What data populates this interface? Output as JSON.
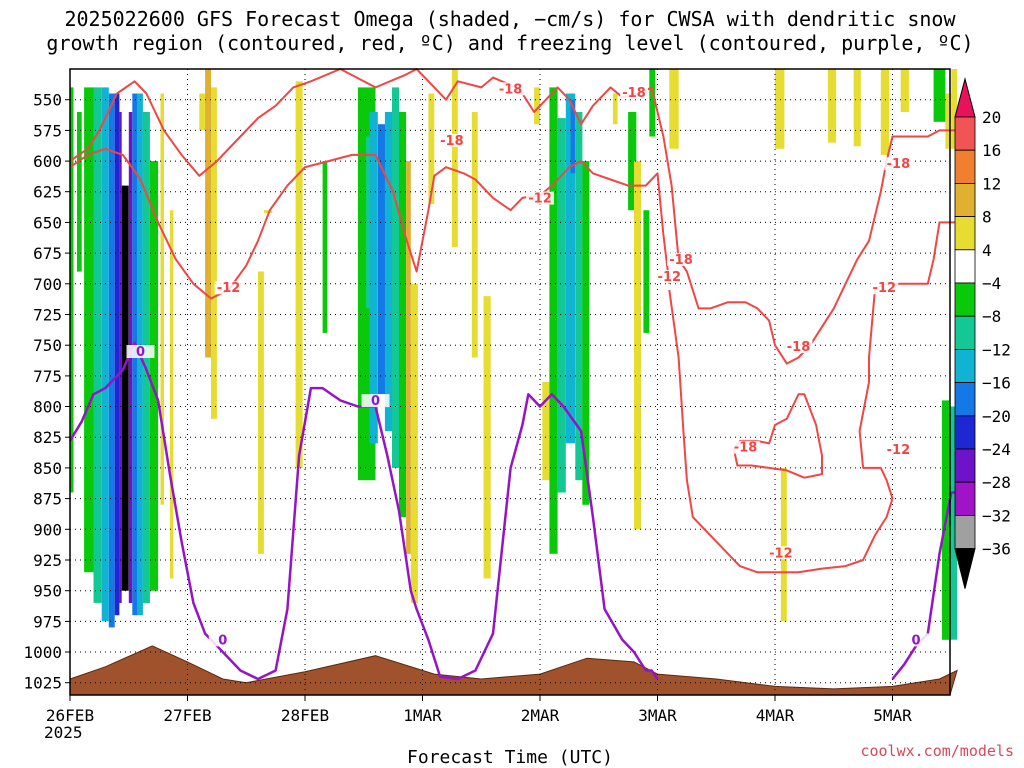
{
  "title_line1": "2025022600 GFS Forecast Omega (shaded, −cm/s) for CWSA with dendritic snow",
  "title_line2": "growth region (contoured, red, ºC) and freezing level (contoured, purple, ºC)",
  "credit": "coolwx.com/models",
  "chart_data": {
    "type": "time-height",
    "title": "2025022600 GFS Forecast Omega (shaded, −cm/s) for CWSA with dendritic snow growth region (contoured, red, ºC) and freezing level (contoured, purple, ºC)",
    "xlabel": "Forecast Time (UTC)",
    "ylabel": "",
    "x_ticks": [
      "26FEB",
      "27FEB",
      "28FEB",
      "1MAR",
      "2MAR",
      "3MAR",
      "4MAR",
      "5MAR"
    ],
    "x_tick_year": "2025",
    "x_range_days": [
      0,
      7.55
    ],
    "y_ticks": [
      550,
      575,
      600,
      625,
      650,
      675,
      700,
      725,
      750,
      775,
      800,
      825,
      850,
      875,
      900,
      925,
      950,
      975,
      1000,
      1025
    ],
    "y_range_hPa": [
      525,
      1035
    ],
    "grid": true,
    "colorbar": {
      "labels": [
        "20",
        "16",
        "12",
        "8",
        "4",
        "−4",
        "−8",
        "−12",
        "−16",
        "−20",
        "−24",
        "−28",
        "−32",
        "−36"
      ],
      "colors": [
        "#e8115c",
        "#f05454",
        "#f08030",
        "#e0b030",
        "#e6dc32",
        "#ffffff",
        "#0ac80a",
        "#14c896",
        "#10b4d2",
        "#1478e6",
        "#1e28d2",
        "#6e14c8",
        "#a014c8",
        "#a0a0a0",
        "#000000"
      ]
    },
    "contour_levels": {
      "dendritic_red": [
        "-12",
        "-18"
      ],
      "freezing_purple": [
        "0"
      ]
    },
    "contour_labels": [
      {
        "text": "-18",
        "color": "#f04646",
        "day": 3.75,
        "hPa": 544
      },
      {
        "text": "-18",
        "color": "#f04646",
        "day": 4.8,
        "hPa": 547
      },
      {
        "text": "-12",
        "color": "#f04646",
        "day": 4.0,
        "hPa": 633
      },
      {
        "text": "-18",
        "color": "#f04646",
        "day": 3.25,
        "hPa": 586
      },
      {
        "text": "-12",
        "color": "#f04646",
        "day": 1.35,
        "hPa": 706
      },
      {
        "text": "-18",
        "color": "#f04646",
        "day": 5.2,
        "hPa": 683
      },
      {
        "text": "-12",
        "color": "#f04646",
        "day": 5.1,
        "hPa": 697
      },
      {
        "text": "-18",
        "color": "#f04646",
        "day": 7.05,
        "hPa": 605
      },
      {
        "text": "-12",
        "color": "#f04646",
        "day": 6.93,
        "hPa": 706
      },
      {
        "text": "-18",
        "color": "#f04646",
        "day": 6.2,
        "hPa": 754
      },
      {
        "text": "-18",
        "color": "#f04646",
        "day": 5.75,
        "hPa": 836
      },
      {
        "text": "-12",
        "color": "#f04646",
        "day": 7.05,
        "hPa": 838
      },
      {
        "text": "-12",
        "color": "#f04646",
        "day": 6.05,
        "hPa": 922
      },
      {
        "text": "0",
        "color": "#9614c8",
        "day": 0.6,
        "hPa": 758
      },
      {
        "text": "0",
        "color": "#9614c8",
        "day": 2.6,
        "hPa": 798
      },
      {
        "text": "0",
        "color": "#9614c8",
        "day": 1.3,
        "hPa": 993
      },
      {
        "text": "0",
        "color": "#9614c8",
        "day": 7.2,
        "hPa": 993
      }
    ],
    "freezing_level_hPa": {
      "days": [
        0.0,
        0.1,
        0.2,
        0.3,
        0.45,
        0.55,
        0.65,
        0.75,
        0.85,
        0.95,
        1.05,
        1.15,
        1.3,
        1.45,
        1.6,
        1.75,
        1.85,
        1.95,
        2.05,
        2.15,
        2.3,
        2.45,
        2.6,
        2.7,
        2.8,
        2.9,
        2.95,
        3.05,
        3.15,
        3.3,
        3.45,
        3.6,
        3.75,
        3.85,
        3.9,
        4.0,
        4.1,
        4.2,
        4.35,
        4.45,
        4.55,
        4.7,
        4.8,
        4.9,
        4.95,
        5.0
      ],
      "hPa": [
        828,
        812,
        790,
        785,
        770,
        748,
        770,
        795,
        855,
        910,
        960,
        985,
        1000,
        1015,
        1022,
        1015,
        965,
        840,
        785,
        785,
        795,
        800,
        800,
        840,
        885,
        950,
        965,
        990,
        1020,
        1022,
        1015,
        985,
        850,
        815,
        790,
        800,
        790,
        800,
        820,
        890,
        965,
        990,
        1000,
        1015,
        1015,
        1022
      ]
    },
    "freezing_level_end": {
      "days": [
        7.0,
        7.1,
        7.2,
        7.3,
        7.4,
        7.5,
        7.55
      ],
      "hPa": [
        1022,
        1010,
        995,
        985,
        920,
        870,
        870
      ]
    }
  }
}
